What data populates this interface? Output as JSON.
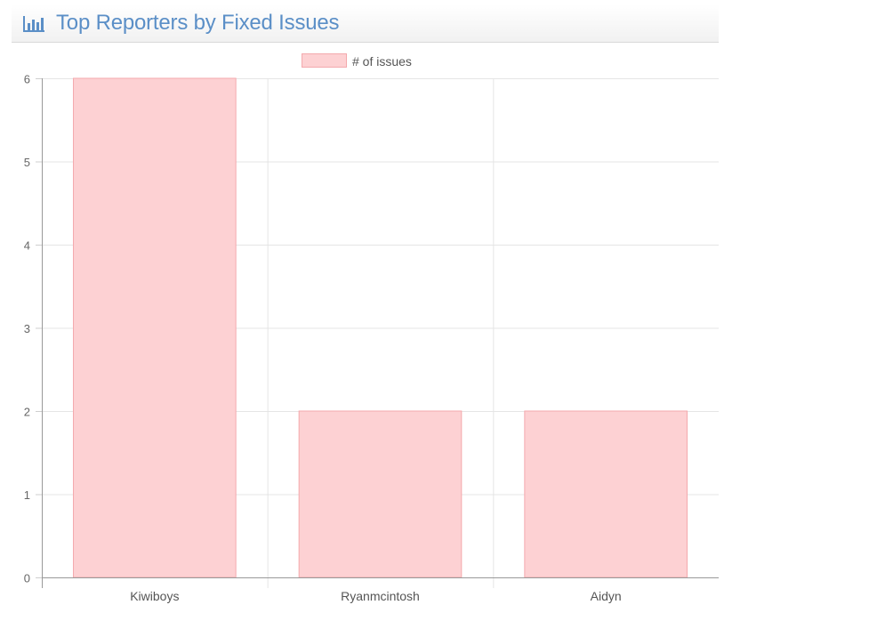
{
  "widget": {
    "title": "Top Reporters by Fixed Issues",
    "icon": "bar-chart-icon",
    "accent_color": "#5b8fc7"
  },
  "chart_data": {
    "type": "bar",
    "categories": [
      "Kiwiboys",
      "Ryanmcintosh",
      "Aidyn"
    ],
    "series": [
      {
        "name": "# of issues",
        "values": [
          6,
          2,
          2
        ],
        "fill_color": "#fdd1d3",
        "border_color": "#f4a9ad"
      }
    ],
    "ylim": [
      0,
      6
    ],
    "yticks": [
      0,
      1,
      2,
      3,
      4,
      5,
      6
    ],
    "grid": true,
    "legend_position": "top-center",
    "xlabel": "",
    "ylabel": ""
  }
}
